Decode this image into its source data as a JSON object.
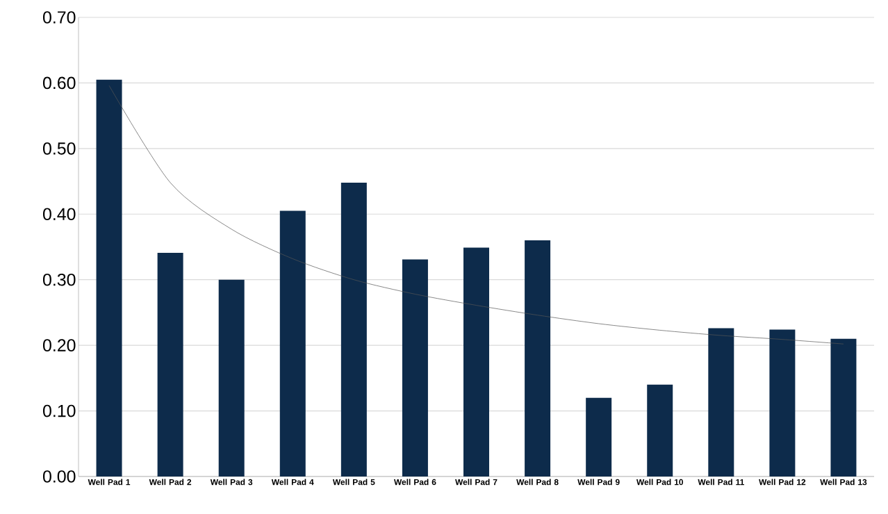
{
  "chart_data": {
    "type": "bar",
    "categories": [
      "Well Pad 1",
      "Well Pad 2",
      "Well Pad 3",
      "Well Pad 4",
      "Well Pad 5",
      "Well Pad 6",
      "Well Pad 7",
      "Well Pad 8",
      "Well Pad 9",
      "Well Pad 10",
      "Well Pad 11",
      "Well Pad 12",
      "Well Pad 13"
    ],
    "series": [
      {
        "color": "#0d2b4b",
        "values": [
          0.605,
          0.341,
          0.3,
          0.405,
          0.448,
          0.331,
          0.349,
          0.36,
          0.12,
          0.14,
          0.226,
          0.224,
          0.21
        ]
      },
      {
        "type": "line",
        "color": "#555555",
        "values": [
          0.596,
          0.448,
          0.377,
          0.332,
          0.3,
          0.278,
          0.261,
          0.246,
          0.233,
          0.223,
          0.215,
          0.209,
          0.202
        ]
      }
    ],
    "ylim": [
      0,
      0.7
    ],
    "yticks": [
      {
        "value": 0,
        "label": "0.00"
      },
      {
        "value": 0.1,
        "label": "0.10"
      },
      {
        "value": 0.2,
        "label": "0.20"
      },
      {
        "value": 0.3,
        "label": "0.30"
      },
      {
        "value": 0.4,
        "label": "0.40"
      },
      {
        "value": 0.5,
        "label": "0.50"
      },
      {
        "value": 0.6,
        "label": "0.60"
      },
      {
        "value": 0.7,
        "label": "0.70"
      }
    ],
    "grid": "y"
  }
}
